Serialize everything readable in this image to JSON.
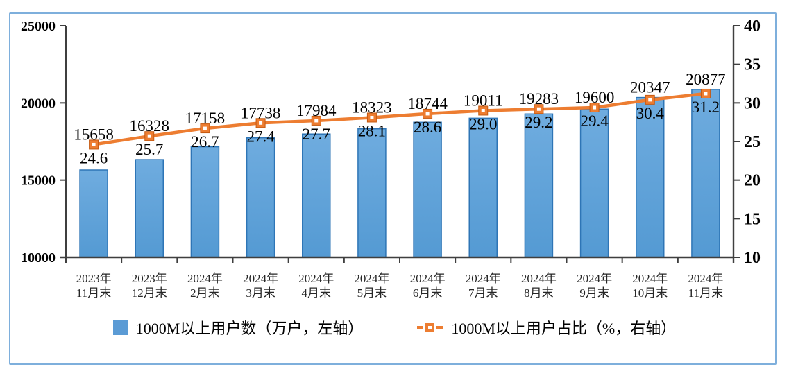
{
  "chart_data": {
    "type": "bar",
    "subtype": "bar-line-combo",
    "categories": [
      [
        "2023年",
        "11月末"
      ],
      [
        "2023年",
        "12月末"
      ],
      [
        "2024年",
        "2月末"
      ],
      [
        "2024年",
        "3月末"
      ],
      [
        "2024年",
        "4月末"
      ],
      [
        "2024年",
        "5月末"
      ],
      [
        "2024年",
        "6月末"
      ],
      [
        "2024年",
        "7月末"
      ],
      [
        "2024年",
        "8月末"
      ],
      [
        "2024年",
        "9月末"
      ],
      [
        "2024年",
        "10月末"
      ],
      [
        "2024年",
        "11月末"
      ]
    ],
    "series": [
      {
        "name": "1000M以上用户数（万户，左轴）",
        "type": "bar",
        "axis": "left",
        "values": [
          15658,
          16328,
          17158,
          17738,
          17984,
          18323,
          18744,
          19011,
          19283,
          19600,
          20347,
          20877
        ],
        "fill": "#5B9BD5",
        "stroke": "#2E75B6"
      },
      {
        "name": "1000M以上用户占比（%，右轴）",
        "type": "line",
        "axis": "right",
        "values": [
          24.6,
          25.7,
          26.7,
          27.4,
          27.7,
          28.1,
          28.6,
          29.0,
          29.2,
          29.4,
          30.4,
          31.2
        ],
        "labels": [
          "24.6",
          "25.7",
          "26.7",
          "27.4",
          "27.7",
          "28.1",
          "28.6",
          "29.0",
          "29.2",
          "29.4",
          "30.4",
          "31.2"
        ],
        "color": "#ED7D31",
        "marker": "square-hollow",
        "marker_border": "#C55A11"
      }
    ],
    "left_axis": {
      "min": 10000,
      "max": 25000,
      "tick_labels": [
        "25000",
        "20000",
        "15000",
        "10000"
      ]
    },
    "right_axis": {
      "min": 10,
      "max": 40,
      "tick_labels": [
        "40",
        "35",
        "30",
        "25",
        "20",
        "15",
        "10"
      ]
    },
    "grid": false,
    "legend_position": "bottom"
  },
  "colors": {
    "frame_border": "#7EAFDC",
    "axis": "#3F3F3F",
    "bar_fill": "#5B9BD5",
    "bar_stroke": "#2E75B6",
    "line": "#ED7D31"
  }
}
